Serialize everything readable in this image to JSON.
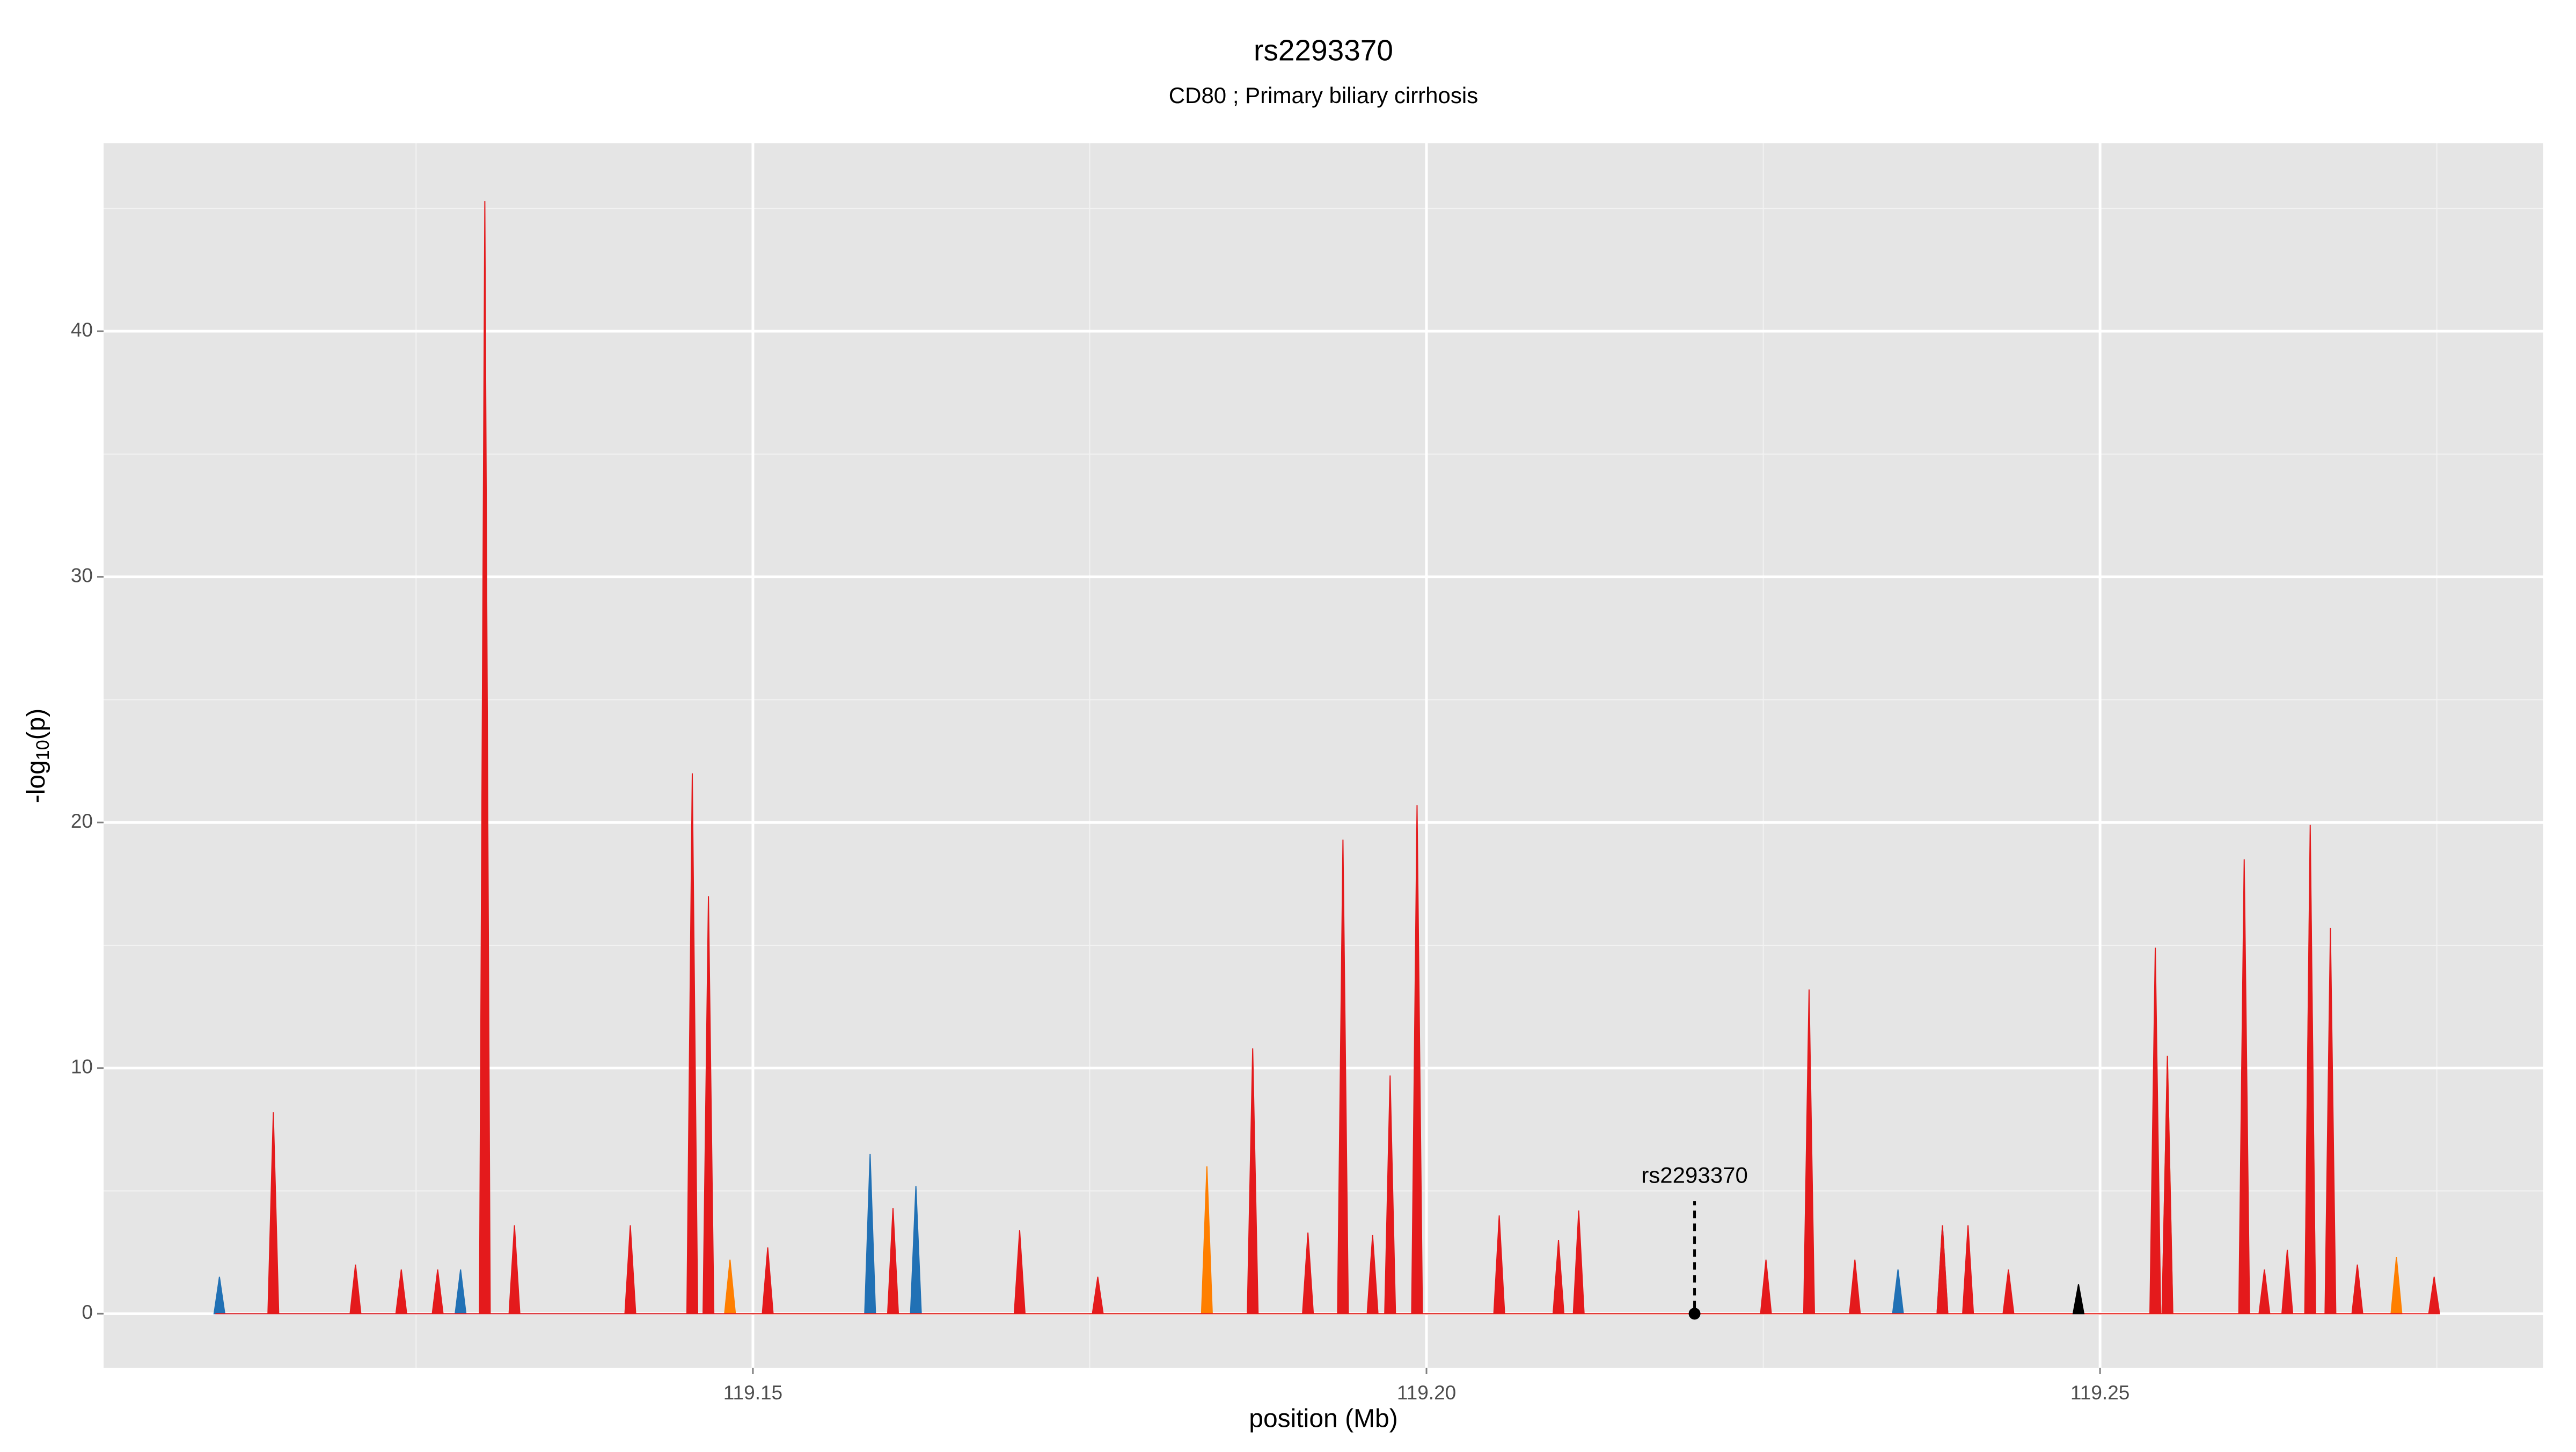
{
  "chart_data": {
    "type": "area",
    "title": "rs2293370",
    "subtitle": "CD80 ; Primary biliary cirrhosis",
    "xlabel": "position (Mb)",
    "ylabel": [
      "-log",
      "10",
      "(p)"
    ],
    "xlim": [
      119.1018,
      119.2829
    ],
    "ylim": [
      -2.2,
      47.65
    ],
    "xticks": [
      {
        "value": 119.15,
        "label": "119.15"
      },
      {
        "value": 119.2,
        "label": "119.20"
      },
      {
        "value": 119.25,
        "label": "119.25"
      }
    ],
    "xminor": [
      119.125,
      119.175,
      119.225,
      119.275
    ],
    "yticks": [
      0,
      10,
      20,
      30,
      40
    ],
    "yminor": [
      5,
      15,
      25,
      35,
      45
    ],
    "grid": true,
    "series": [
      {
        "color": "#2171b5",
        "x": [
          119.11,
          119.1104,
          119.1108,
          119.1279,
          119.1283,
          119.1287,
          119.1583,
          119.1587,
          119.1591,
          119.1617,
          119.1621,
          119.1625,
          119.2346,
          119.235,
          119.2354,
          119.2379,
          119.2383,
          119.2387
        ],
        "values": [
          0,
          1.5,
          0,
          0,
          1.8,
          0,
          0,
          6.5,
          0,
          0,
          5.2,
          0,
          0,
          1.8,
          0,
          0,
          3.6,
          0
        ]
      },
      {
        "color": "#ff7f00",
        "x": [
          119.1479,
          119.1483,
          119.1487,
          119.1833,
          119.1837,
          119.1841,
          119.2546,
          119.255,
          119.2554,
          119.2652,
          119.2656,
          119.266,
          119.2716,
          119.272,
          119.2724
        ],
        "values": [
          0,
          2.2,
          0,
          0,
          6.0,
          0,
          0,
          10.5,
          0,
          0,
          19.5,
          0,
          0,
          2.3,
          0
        ]
      },
      {
        "color": "#e41a1c",
        "x": [
          119.1101,
          119.114,
          119.1144,
          119.1148,
          119.1201,
          119.1205,
          119.1209,
          119.1235,
          119.1239,
          119.1243,
          119.1262,
          119.1266,
          119.127,
          119.1297,
          119.1301,
          119.1305,
          119.1319,
          119.1323,
          119.1327,
          119.1405,
          119.1409,
          119.1413,
          119.1451,
          119.1455,
          119.1459,
          119.1463,
          119.1467,
          119.1471,
          119.1507,
          119.1511,
          119.1515,
          119.16,
          119.1604,
          119.1608,
          119.1694,
          119.1698,
          119.1702,
          119.1752,
          119.1756,
          119.176,
          119.1867,
          119.1871,
          119.1875,
          119.1908,
          119.1912,
          119.1916,
          119.1934,
          119.1938,
          119.1942,
          119.1956,
          119.196,
          119.1964,
          119.1969,
          119.1973,
          119.1977,
          119.1989,
          119.1993,
          119.1997,
          119.205,
          119.2054,
          119.2058,
          119.2094,
          119.2098,
          119.2102,
          119.2109,
          119.2113,
          119.2117,
          119.2248,
          119.2252,
          119.2256,
          119.228,
          119.2284,
          119.2288,
          119.2314,
          119.2318,
          119.2322,
          119.2379,
          119.2383,
          119.2387,
          119.2398,
          119.2402,
          119.2406,
          119.2428,
          119.2432,
          119.2436,
          119.2537,
          119.2541,
          119.2545,
          119.2546,
          119.255,
          119.2554,
          119.2603,
          119.2607,
          119.2611,
          119.2618,
          119.2622,
          119.2626,
          119.2635,
          119.2639,
          119.2643,
          119.2652,
          119.2656,
          119.266,
          119.2667,
          119.2671,
          119.2675,
          119.2687,
          119.2691,
          119.2695,
          119.2744,
          119.2748,
          119.2752
        ],
        "values": [
          0,
          0,
          8.2,
          0,
          0,
          2,
          0,
          0,
          1.8,
          0,
          0,
          1.8,
          0,
          0,
          45.3,
          0,
          0,
          3.6,
          0,
          0,
          3.6,
          0,
          0,
          22,
          0,
          0,
          17,
          0,
          0,
          2.7,
          0,
          0,
          4.3,
          0,
          0,
          3.4,
          0,
          0,
          1.5,
          0,
          0,
          10.8,
          0,
          0,
          3.3,
          0,
          0,
          19.3,
          0,
          0,
          3.2,
          0,
          0,
          9.7,
          0,
          0,
          20.7,
          0,
          0,
          4,
          0,
          0,
          3,
          0,
          0,
          4.2,
          0,
          0,
          2.2,
          0,
          0,
          13.2,
          0,
          0,
          2.2,
          0,
          0,
          3.6,
          0,
          0,
          3.6,
          0,
          0,
          1.8,
          0,
          0,
          14.9,
          0,
          0,
          10.5,
          0,
          0,
          18.5,
          0,
          0,
          1.8,
          0,
          0,
          2.6,
          0,
          0,
          19.9,
          0,
          0,
          15.7,
          0,
          0,
          2,
          0,
          0,
          1.5,
          0
        ]
      },
      {
        "color": "#000000",
        "x": [
          119.248,
          119.2484,
          119.2488
        ],
        "values": [
          0,
          1.2,
          0
        ]
      }
    ],
    "annotation": {
      "text": "rs2293370",
      "x": 119.2199,
      "y": 0
    }
  }
}
